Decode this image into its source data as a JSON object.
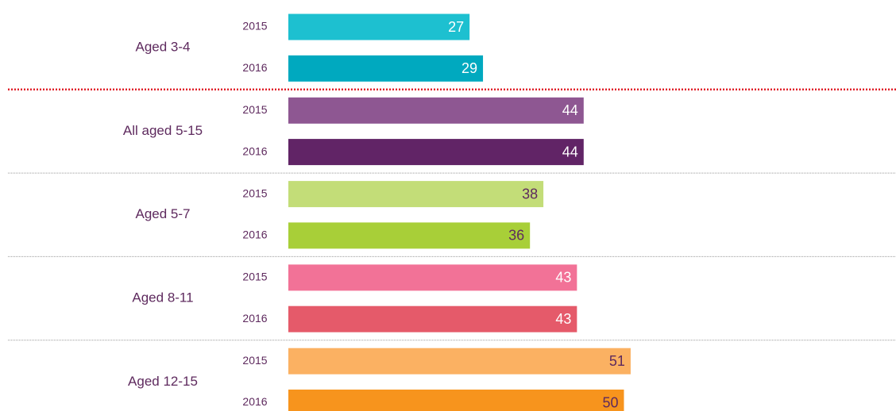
{
  "chart_data": {
    "type": "bar",
    "categories": [
      "Aged 3-4",
      "All aged 5-15",
      "Aged 5-7",
      "Aged 8-11",
      "Aged 12-15"
    ],
    "series": [
      {
        "name": "2015",
        "values": [
          27,
          44,
          38,
          43,
          51
        ],
        "colors": [
          "#1dc0d0",
          "#8e5792",
          "#c3dd78",
          "#f27297",
          "#fbb162"
        ]
      },
      {
        "name": "2016",
        "values": [
          29,
          44,
          36,
          43,
          50
        ],
        "colors": [
          "#00a9bf",
          "#612466",
          "#a8cf38",
          "#e55a6a",
          "#f7941d"
        ]
      }
    ],
    "value_label_colors": [
      "#ffffff",
      "#ffffff",
      "#5e2a5e",
      "#ffffff",
      "#5e2a5e"
    ]
  }
}
